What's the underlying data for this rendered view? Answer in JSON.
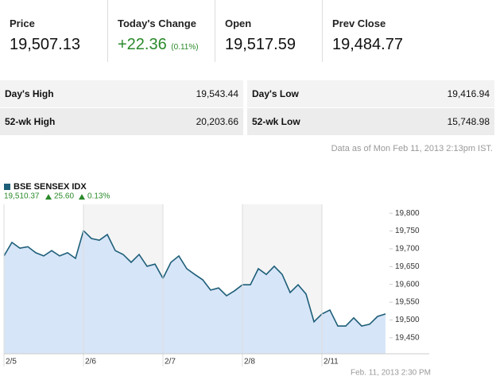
{
  "quote": {
    "price_label": "Price",
    "price": "19,507.13",
    "change_label": "Today's Change",
    "change": "+22.36",
    "change_pct": "(0.11%)",
    "open_label": "Open",
    "open": "19,517.59",
    "prev_label": "Prev Close",
    "prev": "19,484.77"
  },
  "stats": {
    "left": [
      [
        "Day's High",
        "19,543.44"
      ],
      [
        "52-wk High",
        "20,203.66"
      ]
    ],
    "right": [
      [
        "Day's Low",
        "19,416.94"
      ],
      [
        "52-wk Low",
        "15,748.98"
      ]
    ]
  },
  "as_of": "Data as of Mon Feb 11, 2013 2:13pm IST.",
  "chart_data": {
    "type": "line",
    "legend": {
      "name": "BSE SENSEX IDX",
      "last": "19,510.37",
      "change": "25.60",
      "percent": "0.13%"
    },
    "footer": "Feb. 11, 2013 2:30 PM",
    "series": [
      {
        "name": "BSE SENSEX IDX",
        "color": "#1d5e78",
        "values": [
          19680,
          19718,
          19702,
          19706,
          19689,
          19680,
          19695,
          19680,
          19689,
          19673,
          19751,
          19729,
          19724,
          19740,
          19695,
          19684,
          19662,
          19684,
          19651,
          19657,
          19617,
          19662,
          19680,
          19644,
          19628,
          19613,
          19584,
          19590,
          19568,
          19582,
          19599,
          19599,
          19644,
          19628,
          19651,
          19628,
          19577,
          19599,
          19573,
          19495,
          19517,
          19528,
          19483,
          19483,
          19506,
          19483,
          19488,
          19510,
          19517
        ]
      }
    ],
    "xticks": [
      {
        "value": 0,
        "label": "2/5"
      },
      {
        "value": 10,
        "label": "2/6"
      },
      {
        "value": 20,
        "label": "2/7"
      },
      {
        "value": 30,
        "label": "2/8"
      },
      {
        "value": 40,
        "label": "2/11"
      }
    ],
    "xlim": [
      0,
      48
    ],
    "ylim": [
      19405,
      19825
    ],
    "yticks": [
      {
        "value": 19450,
        "label": "19,450"
      },
      {
        "value": 19500,
        "label": "19,500"
      },
      {
        "value": 19550,
        "label": "19,550"
      },
      {
        "value": 19600,
        "label": "19,600"
      },
      {
        "value": 19650,
        "label": "19,650"
      },
      {
        "value": 19700,
        "label": "19,700"
      },
      {
        "value": 19750,
        "label": "19,750"
      },
      {
        "value": 19800,
        "label": "19,800"
      }
    ]
  }
}
